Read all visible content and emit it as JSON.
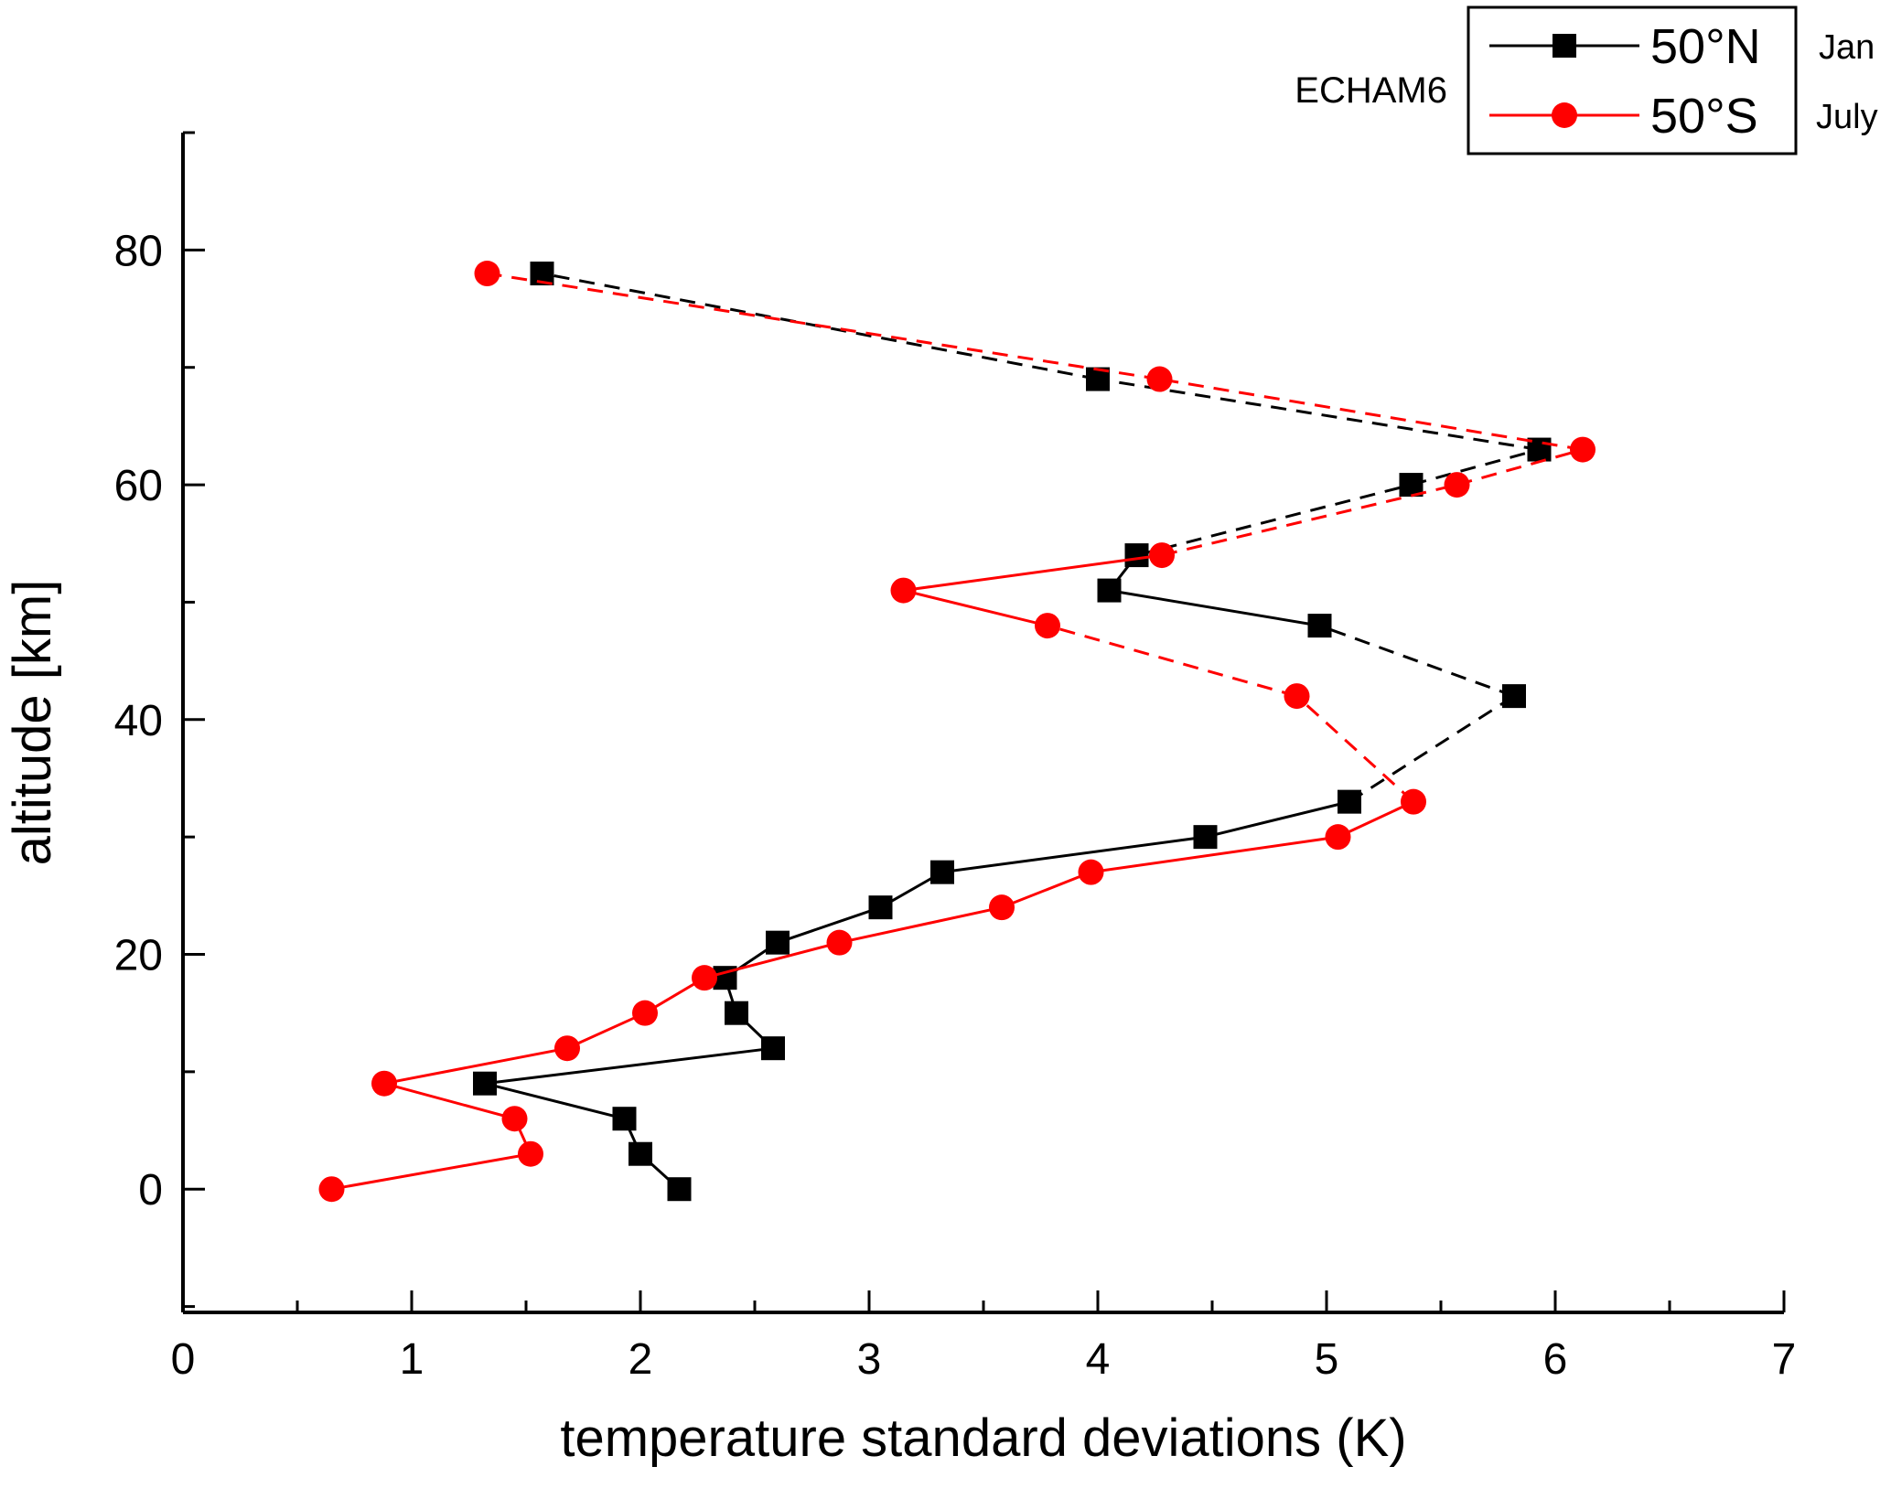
{
  "figure": {
    "background": "#ffffff"
  },
  "chart_data": {
    "type": "line",
    "title": "",
    "xlabel": "temperature standard deviations  (K)",
    "ylabel": "altitude [km]",
    "xlim": [
      0,
      7
    ],
    "ylim": [
      -10.5,
      90
    ],
    "xticks": [
      0,
      1,
      2,
      3,
      4,
      5,
      6,
      7
    ],
    "yticks": [
      0,
      20,
      40,
      60,
      80
    ],
    "x_minor_step": 0.5,
    "y_minor_step": 10,
    "grid": false,
    "annotation": "ECHAM6",
    "legend_position": "top-right",
    "axis_color": "#000000",
    "series": [
      {
        "name": "50°N",
        "season": "Jan",
        "color": "#000000",
        "marker": "square",
        "x": [
          2.17,
          2.0,
          1.93,
          1.32,
          2.58,
          2.42,
          2.37,
          2.6,
          3.05,
          3.32,
          4.47,
          5.1,
          5.82,
          4.97,
          4.05,
          4.17,
          5.37,
          5.93,
          4.0,
          1.57
        ],
        "y": [
          0,
          3,
          6,
          9,
          12,
          15,
          18,
          21,
          24,
          27,
          30,
          33,
          42,
          48,
          51,
          54,
          60,
          63,
          69,
          78
        ],
        "segment_styles": [
          "solid",
          "solid",
          "solid",
          "solid",
          "solid",
          "solid",
          "solid",
          "solid",
          "solid",
          "solid",
          "solid",
          "dashed",
          "dashed",
          "solid",
          "solid",
          "dashed",
          "dashed",
          "dashed",
          "dashed"
        ]
      },
      {
        "name": "50°S",
        "season": "July",
        "color": "#ff0000",
        "marker": "circle",
        "x": [
          0.65,
          1.52,
          1.45,
          0.88,
          1.68,
          2.02,
          2.28,
          2.87,
          3.58,
          3.97,
          5.05,
          5.38,
          4.87,
          3.78,
          3.15,
          4.28,
          5.57,
          6.12,
          4.27,
          1.33
        ],
        "y": [
          0,
          3,
          6,
          9,
          12,
          15,
          18,
          21,
          24,
          27,
          30,
          33,
          42,
          48,
          51,
          54,
          60,
          63,
          69,
          78
        ],
        "segment_styles": [
          "solid",
          "solid",
          "solid",
          "solid",
          "solid",
          "solid",
          "solid",
          "solid",
          "solid",
          "solid",
          "solid",
          "dashed",
          "dashed",
          "solid",
          "solid",
          "dashed",
          "dashed",
          "dashed",
          "dashed"
        ]
      }
    ]
  }
}
